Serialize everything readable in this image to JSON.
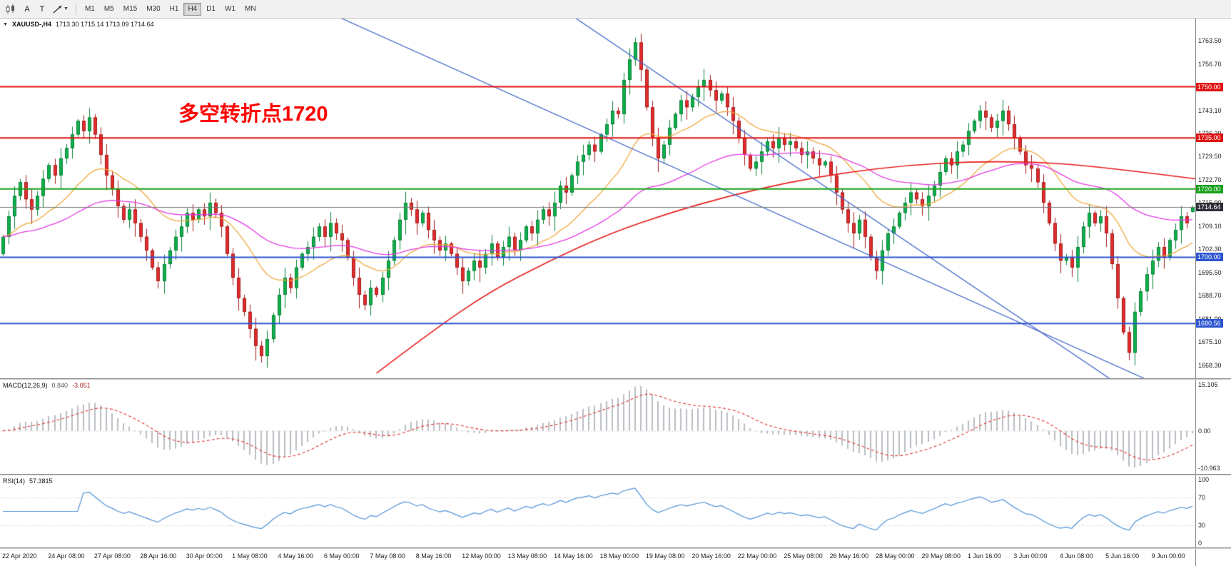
{
  "toolbar": {
    "buttons": {
      "cursor": "A",
      "text": "T"
    },
    "timeframes": [
      "M1",
      "M5",
      "M15",
      "M30",
      "H1",
      "H4",
      "D1",
      "W1",
      "MN"
    ],
    "active_timeframe": "H4"
  },
  "chart": {
    "symbol_label": "XAUUSD-,H4",
    "ohlc_text": "1713.30 1715.14 1713.09 1714.64",
    "annotation": {
      "text": "多空转折点1720",
      "color": "#ff0000"
    },
    "colors": {
      "bull": "#0fb04c",
      "bull_stroke": "#0a8038",
      "bear": "#e22d2d",
      "bear_stroke": "#a31d1d",
      "trendline": "#3f63c9"
    },
    "price_axis": {
      "max": 1770,
      "min": 1664.5,
      "ticks": [
        "1763.50",
        "1756.70",
        "1749.90",
        "1743.10",
        "1736.30",
        "1729.50",
        "1722.70",
        "1715.90",
        "1709.10",
        "1702.30",
        "1695.50",
        "1688.70",
        "1681.90",
        "1675.10",
        "1668.30"
      ]
    },
    "hlines": [
      {
        "price": 1750.0,
        "label": "1750.00",
        "color": "#e11212"
      },
      {
        "price": 1735.0,
        "label": "1735.00",
        "color": "#e11212"
      },
      {
        "price": 1720.0,
        "label": "1720.00",
        "color": "#17a21b"
      },
      {
        "price": 1700.0,
        "label": "1700.00",
        "color": "#2c55d0"
      },
      {
        "price": 1680.56,
        "label": "1680.56",
        "color": "#2c55d0"
      }
    ],
    "current_price": {
      "price": 1714.64,
      "label": "1714.64",
      "bg": "#2f2f3a"
    },
    "trendlines": [
      {
        "x1f": 0.286,
        "p1": 1770,
        "x2f": 0.957,
        "p2": 1664.5
      },
      {
        "x1f": 0.482,
        "p1": 1770,
        "x2f": 0.928,
        "p2": 1664.5
      }
    ],
    "ma": {
      "fast_period": 20,
      "fast_color": "#efa93f",
      "medium_period": 55,
      "medium_color": "#e43ae4",
      "slow_color": "#e81c1c",
      "slow_points": [
        [
          0.315,
          1666
        ],
        [
          0.36,
          1678
        ],
        [
          0.41,
          1690
        ],
        [
          0.46,
          1699
        ],
        [
          0.51,
          1707
        ],
        [
          0.56,
          1713
        ],
        [
          0.61,
          1718
        ],
        [
          0.66,
          1722
        ],
        [
          0.71,
          1725
        ],
        [
          0.76,
          1727
        ],
        [
          0.81,
          1728
        ],
        [
          0.86,
          1728
        ],
        [
          0.905,
          1727
        ],
        [
          0.955,
          1725
        ],
        [
          1.0,
          1723
        ]
      ]
    }
  },
  "chart_data": {
    "type": "candlestick",
    "symbol": "XAUUSD",
    "timeframe": "H4",
    "first_open": 1701,
    "closes": [
      1706,
      1712,
      1718,
      1722,
      1717,
      1714,
      1718,
      1723,
      1727,
      1724,
      1729,
      1732,
      1736,
      1740,
      1737,
      1741,
      1736,
      1730,
      1724,
      1720,
      1715,
      1711,
      1714,
      1710,
      1706,
      1702,
      1697,
      1693,
      1698,
      1702,
      1706,
      1709,
      1713,
      1711,
      1714,
      1712,
      1716,
      1713,
      1709,
      1701,
      1694,
      1688,
      1684,
      1679,
      1674,
      1671,
      1676,
      1683,
      1689,
      1694,
      1691,
      1697,
      1701,
      1703,
      1706,
      1709,
      1706,
      1710,
      1707,
      1705,
      1700,
      1694,
      1689,
      1686,
      1691,
      1689,
      1694,
      1699,
      1705,
      1711,
      1716,
      1714,
      1710,
      1713,
      1708,
      1705,
      1702,
      1704,
      1701,
      1697,
      1693,
      1696,
      1699,
      1697,
      1701,
      1704,
      1700,
      1703,
      1706,
      1702,
      1705,
      1709,
      1707,
      1711,
      1714,
      1712,
      1716,
      1721,
      1719,
      1724,
      1728,
      1730,
      1733,
      1731,
      1736,
      1739,
      1743,
      1742,
      1752,
      1758,
      1763,
      1755,
      1744,
      1735,
      1729,
      1733,
      1738,
      1742,
      1746,
      1744,
      1747,
      1750,
      1752,
      1749,
      1746,
      1748,
      1744,
      1740,
      1735,
      1730,
      1726,
      1728,
      1731,
      1734,
      1732,
      1735,
      1733,
      1734,
      1732,
      1730,
      1731,
      1729,
      1727,
      1728,
      1724,
      1719,
      1714,
      1710,
      1707,
      1711,
      1706,
      1700,
      1696,
      1702,
      1707,
      1709,
      1713,
      1716,
      1719,
      1717,
      1715,
      1718,
      1721,
      1725,
      1729,
      1727,
      1731,
      1733,
      1737,
      1740,
      1743,
      1741,
      1738,
      1740,
      1743,
      1739,
      1735,
      1731,
      1727,
      1726,
      1722,
      1716,
      1710,
      1704,
      1699,
      1700,
      1697,
      1703,
      1709,
      1713,
      1710,
      1712,
      1707,
      1698,
      1688,
      1678,
      1672,
      1684,
      1690,
      1695,
      1699,
      1703,
      1700,
      1705,
      1708,
      1712,
      1710,
      1714.6
    ]
  },
  "macd": {
    "label": "MACD(12,26,9)",
    "value_main": "0.840",
    "value_signal": "-3.051",
    "fast": 12,
    "slow": 26,
    "signal": 9,
    "axis_values": [
      15.105,
      0,
      -10.963
    ],
    "axis_texts": [
      "15.105",
      "0.00",
      "-10.963"
    ],
    "hist_color": "#b9bdc2",
    "signal_color": "#e03030"
  },
  "rsi": {
    "label": "RSI(14)",
    "value": "57.3815",
    "period": 14,
    "axis_values": [
      100,
      70,
      30,
      0
    ],
    "axis_texts": [
      "100",
      "70",
      "30",
      "0"
    ],
    "levels": [
      70,
      30
    ],
    "color": "#4f93d6"
  },
  "time_axis": {
    "labels": [
      "22 Apr 2020",
      "24 Apr 08:00",
      "27 Apr 08:00",
      "28 Apr 16:00",
      "30 Apr 00:00",
      "1 May 08:00",
      "4 May 16:00",
      "6 May 00:00",
      "7 May 08:00",
      "8 May 16:00",
      "12 May 00:00",
      "13 May 08:00",
      "14 May 16:00",
      "18 May 00:00",
      "19 May 08:00",
      "20 May 16:00",
      "22 May 00:00",
      "25 May 08:00",
      "26 May 16:00",
      "28 May 00:00",
      "29 May 08:00",
      "1 Jun 16:00",
      "3 Jun 00:00",
      "4 Jun 08:00",
      "5 Jun 16:00",
      "9 Jun 00:00"
    ]
  }
}
